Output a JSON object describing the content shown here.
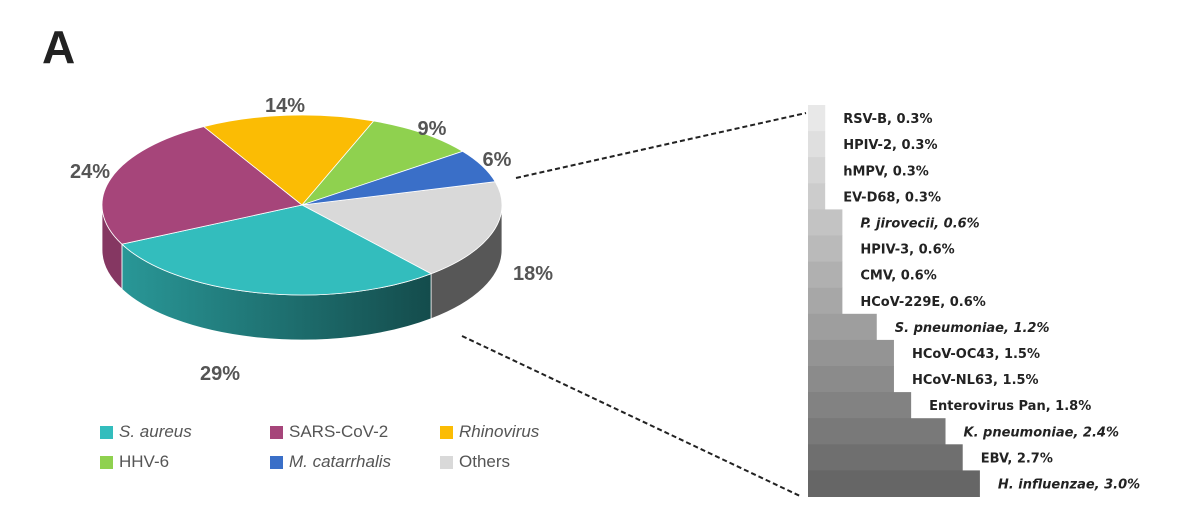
{
  "panel_letter": "A",
  "chart_data": [
    {
      "type": "pie",
      "style": "3d",
      "slices": [
        {
          "name": "S. aureus",
          "value": 29,
          "label": "29%",
          "color": "#33bdbd",
          "italic": true
        },
        {
          "name": "SARS-CoV-2",
          "value": 24,
          "label": "24%",
          "color": "#a6457a",
          "italic": false
        },
        {
          "name": "Rhinovirus",
          "value": 14,
          "label": "14%",
          "color": "#fbbc04",
          "italic": true
        },
        {
          "name": "HHV-6",
          "value": 9,
          "label": "9%",
          "color": "#8fd14f",
          "italic": false
        },
        {
          "name": "M. catarrhalis",
          "value": 6,
          "label": "6%",
          "color": "#3a6fc8",
          "italic": true
        },
        {
          "name": "Others",
          "value": 18,
          "label": "18%",
          "color": "#d9d9d9",
          "italic": false
        }
      ],
      "legend_position": "bottom"
    },
    {
      "type": "bar",
      "orientation": "horizontal",
      "description_of": "Others breakdown",
      "categories": [
        "RSV-B",
        "HPIV-2",
        "hMPV",
        "EV-D68",
        "P. jirovecii",
        "HPIV-3",
        "CMV",
        "HCoV-229E",
        "S. pneumoniae",
        "HCoV-OC43",
        "HCoV-NL63",
        "Enterovirus Pan",
        "K. pneumoniae",
        "EBV",
        "H. influenzae"
      ],
      "values": [
        0.3,
        0.3,
        0.3,
        0.3,
        0.6,
        0.6,
        0.6,
        0.6,
        1.2,
        1.5,
        1.5,
        1.8,
        2.4,
        2.7,
        3.0
      ],
      "labels": [
        "RSV-B, 0.3%",
        "HPIV-2, 0.3%",
        "hMPV, 0.3%",
        "EV-D68, 0.3%",
        "P. jirovecii, 0.6%",
        "HPIV-3, 0.6%",
        "CMV, 0.6%",
        "HCoV-229E, 0.6%",
        "S. pneumoniae, 1.2%",
        "HCoV-OC43, 1.5%",
        "HCoV-NL63, 1.5%",
        "Enterovirus Pan, 1.8%",
        "K. pneumoniae, 2.4%",
        "EBV, 2.7%",
        "H. influenzae, 3.0%"
      ],
      "italic": [
        false,
        false,
        false,
        false,
        true,
        false,
        false,
        false,
        true,
        false,
        false,
        false,
        true,
        false,
        true
      ],
      "color_range": [
        "#e8e8e8",
        "#666666"
      ]
    }
  ]
}
